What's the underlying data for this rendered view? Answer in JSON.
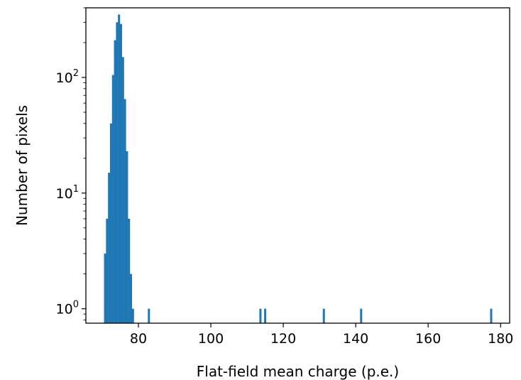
{
  "chart_data": {
    "type": "bar",
    "title": "",
    "xlabel": "Flat-field mean charge (p.e.)",
    "ylabel": "Number of pixels",
    "xlim": [
      65.5,
      182.5
    ],
    "ylim": [
      0.75,
      400
    ],
    "yscale": "log",
    "grid": false,
    "bar_color": "#1f77b4",
    "x_ticks": [
      80,
      100,
      120,
      140,
      160,
      180
    ],
    "y_ticks": [
      {
        "value": 1,
        "base": "10",
        "exp": "0"
      },
      {
        "value": 10,
        "base": "10",
        "exp": "1"
      },
      {
        "value": 100,
        "base": "10",
        "exp": "2"
      }
    ],
    "bin_width": 0.55,
    "bins": [
      {
        "x": 70.8,
        "count": 3
      },
      {
        "x": 71.35,
        "count": 6
      },
      {
        "x": 71.9,
        "count": 15
      },
      {
        "x": 72.45,
        "count": 40
      },
      {
        "x": 73.0,
        "count": 105
      },
      {
        "x": 73.55,
        "count": 210
      },
      {
        "x": 74.1,
        "count": 300
      },
      {
        "x": 74.65,
        "count": 350
      },
      {
        "x": 75.2,
        "count": 290
      },
      {
        "x": 75.75,
        "count": 150
      },
      {
        "x": 76.3,
        "count": 65
      },
      {
        "x": 76.85,
        "count": 23
      },
      {
        "x": 77.4,
        "count": 6
      },
      {
        "x": 77.95,
        "count": 2
      },
      {
        "x": 78.5,
        "count": 1
      },
      {
        "x": 82.9,
        "count": 1
      },
      {
        "x": 113.7,
        "count": 1
      },
      {
        "x": 115.0,
        "count": 1
      },
      {
        "x": 131.2,
        "count": 1
      },
      {
        "x": 141.5,
        "count": 1
      },
      {
        "x": 177.4,
        "count": 1
      }
    ]
  }
}
